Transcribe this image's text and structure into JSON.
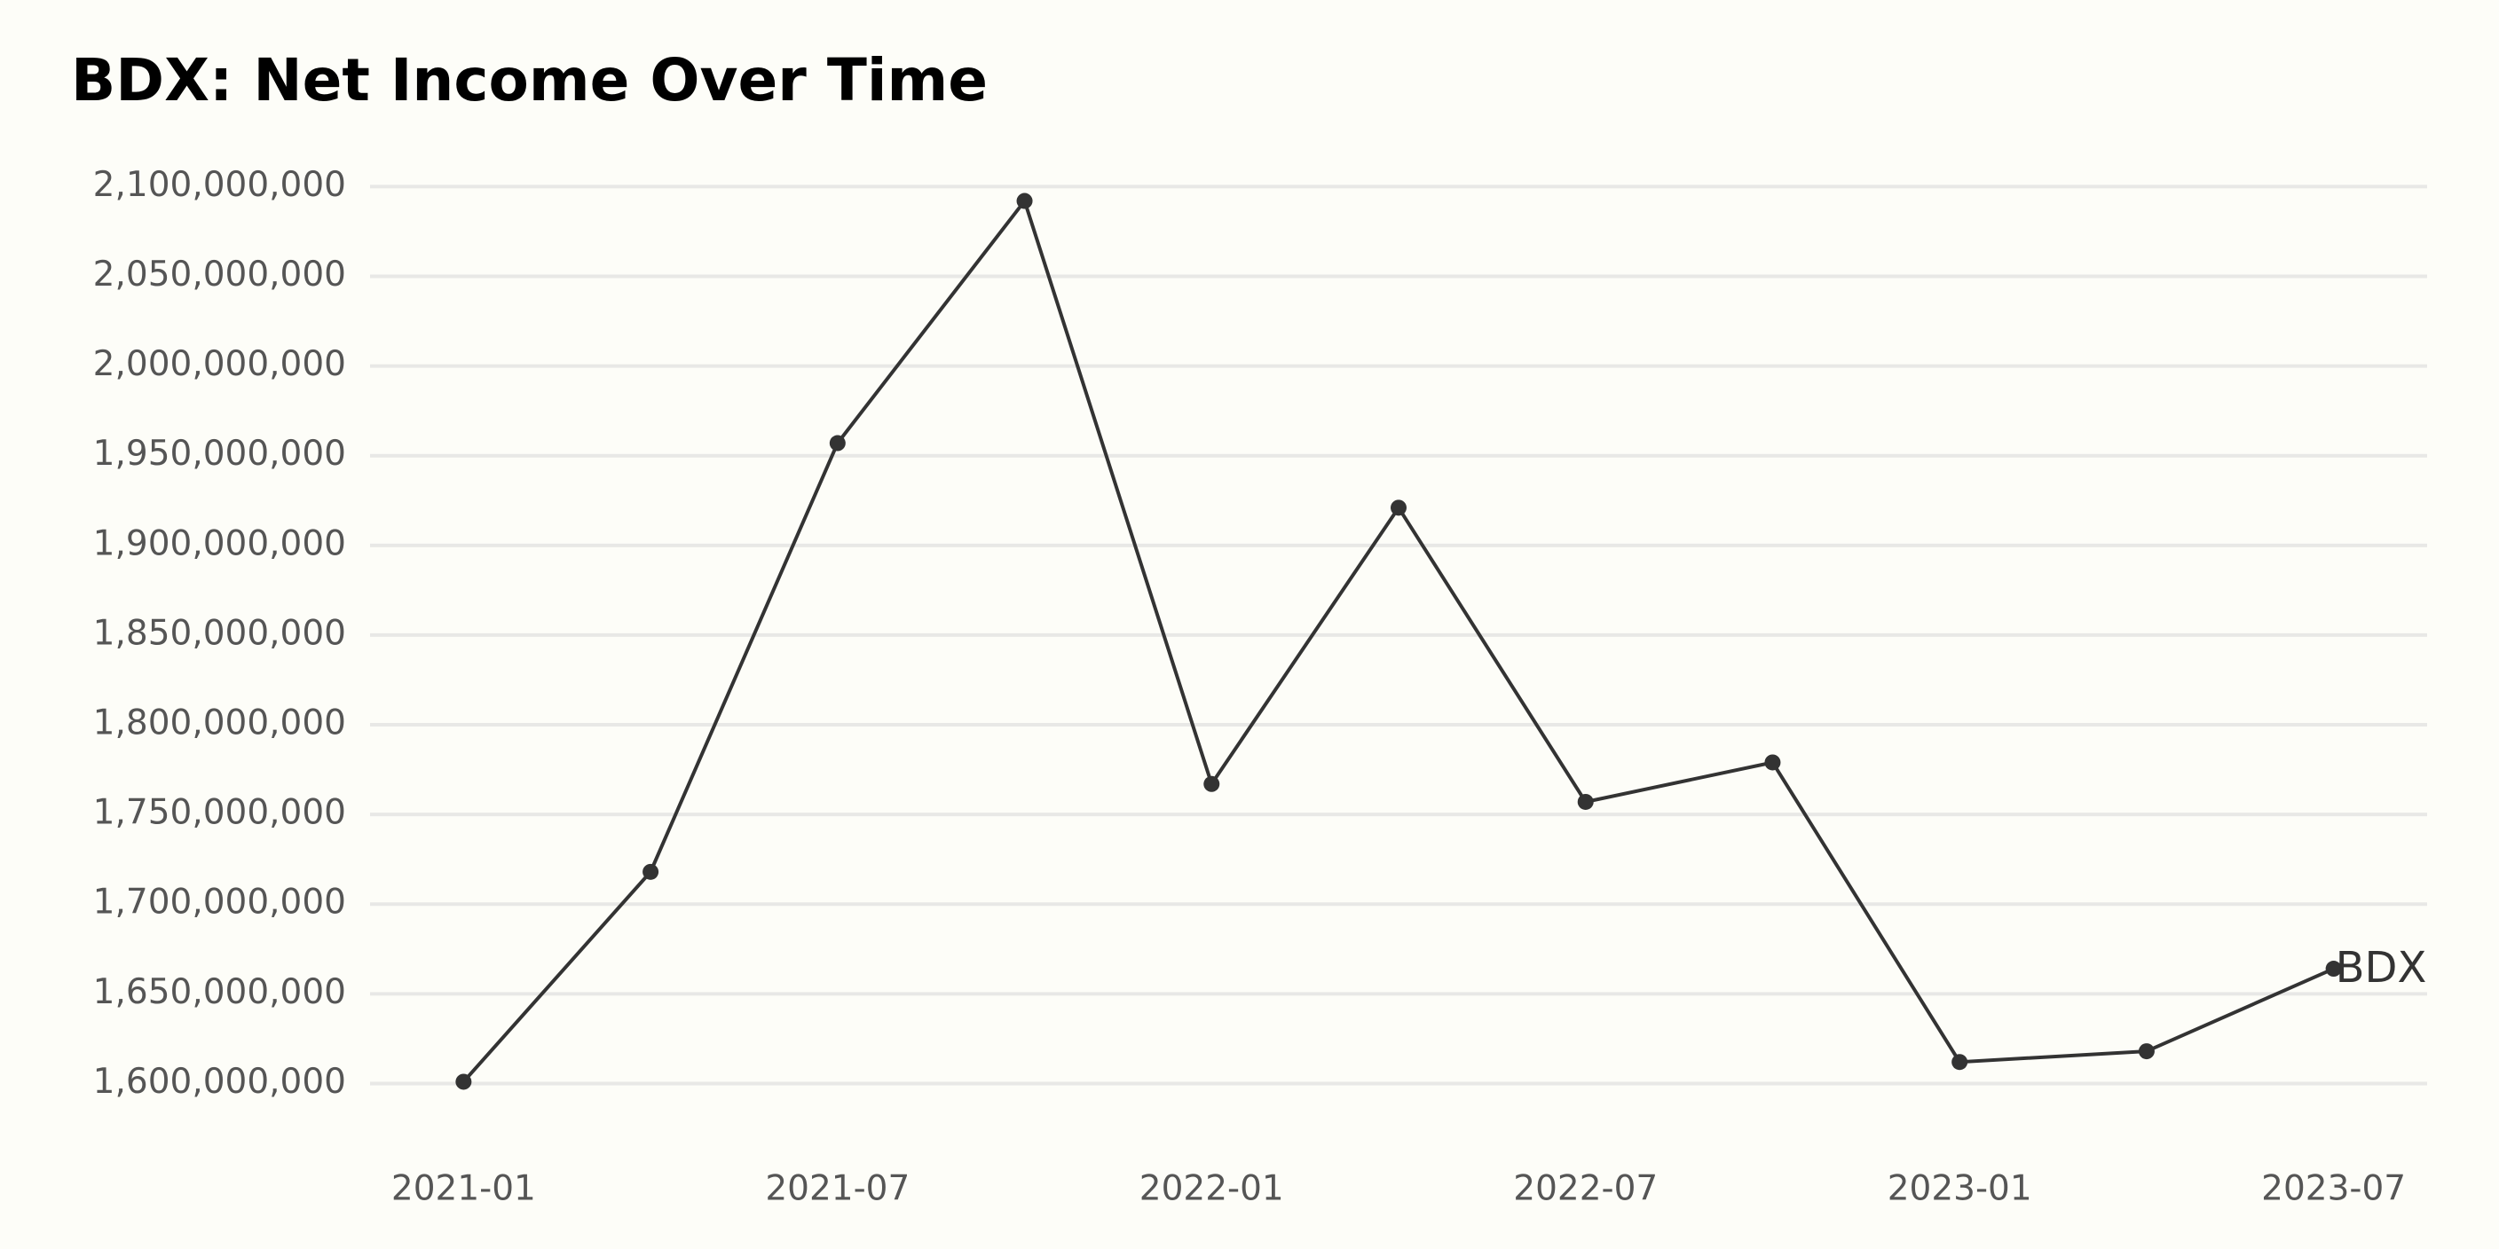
{
  "chart_data": {
    "type": "line",
    "title": "BDX: Net Income Over Time",
    "x": [
      "2021-01",
      "2021-04",
      "2021-07",
      "2021-10",
      "2022-01",
      "2022-04",
      "2022-07",
      "2022-10",
      "2023-01",
      "2023-04",
      "2023-07"
    ],
    "series": [
      {
        "name": "BDX",
        "color": "#333333",
        "values": [
          1601000000,
          1718000000,
          1957000000,
          2092000000,
          1767000000,
          1921000000,
          1757000000,
          1779000000,
          1612000000,
          1618000000,
          1664000000
        ]
      }
    ],
    "ylim": [
      1576000000,
      2117000000
    ],
    "yticks": [
      {
        "value": 1600000000,
        "label": "1,600,000,000"
      },
      {
        "value": 1650000000,
        "label": "1,650,000,000"
      },
      {
        "value": 1700000000,
        "label": "1,700,000,000"
      },
      {
        "value": 1750000000,
        "label": "1,750,000,000"
      },
      {
        "value": 1800000000,
        "label": "1,800,000,000"
      },
      {
        "value": 1850000000,
        "label": "1,850,000,000"
      },
      {
        "value": 1900000000,
        "label": "1,900,000,000"
      },
      {
        "value": 1950000000,
        "label": "1,950,000,000"
      },
      {
        "value": 2000000000,
        "label": "2,000,000,000"
      },
      {
        "value": 2050000000,
        "label": "2,050,000,000"
      },
      {
        "value": 2100000000,
        "label": "2,100,000,000"
      }
    ],
    "xticks": [
      "2021-01",
      "2021-07",
      "2022-01",
      "2022-07",
      "2023-01",
      "2023-07"
    ],
    "grid": true
  }
}
